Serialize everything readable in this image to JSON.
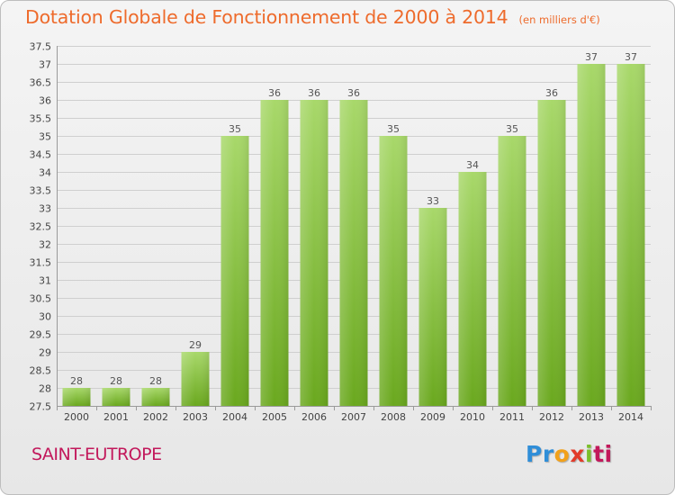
{
  "header": {
    "title": "Dotation Globale de Fonctionnement de 2000 à 2014",
    "subtitle": "(en milliers d'€)"
  },
  "footer": {
    "commune": "SAINT-EUTROPE",
    "logo": "Proxiti",
    "logo_colors": [
      "#2f8ed8",
      "#f2a11a",
      "#e23b2a",
      "#7bbf2a",
      "#c2185b"
    ]
  },
  "colors": {
    "bar_light": "#a8d86a",
    "bar_dark": "#6aa81e",
    "grid": "#cfcfcf",
    "title": "#ee6b2c",
    "commune": "#c2185b"
  },
  "chart_data": {
    "type": "bar",
    "title": "Dotation Globale de Fonctionnement de 2000 à 2014",
    "subtitle": "(en milliers d'€)",
    "xlabel": "",
    "ylabel": "",
    "categories": [
      "2000",
      "2001",
      "2002",
      "2003",
      "2004",
      "2005",
      "2006",
      "2007",
      "2008",
      "2009",
      "2010",
      "2011",
      "2012",
      "2013",
      "2014"
    ],
    "values": [
      28,
      28,
      28,
      29,
      35,
      36,
      36,
      36,
      35,
      33,
      34,
      35,
      36,
      37,
      37
    ],
    "value_labels": [
      "28",
      "28",
      "28",
      "29",
      "35",
      "36",
      "36",
      "36",
      "35",
      "33",
      "34",
      "35",
      "36",
      "37",
      "37"
    ],
    "ylim": [
      27.5,
      37.5
    ],
    "yticks": [
      "27.5",
      "28",
      "28.5",
      "29",
      "29.5",
      "30",
      "30.5",
      "31",
      "31.5",
      "32",
      "32.5",
      "33",
      "33.5",
      "34",
      "34.5",
      "35",
      "35.5",
      "36",
      "36.5",
      "37",
      "37.5"
    ],
    "grid": true,
    "legend": "none"
  }
}
